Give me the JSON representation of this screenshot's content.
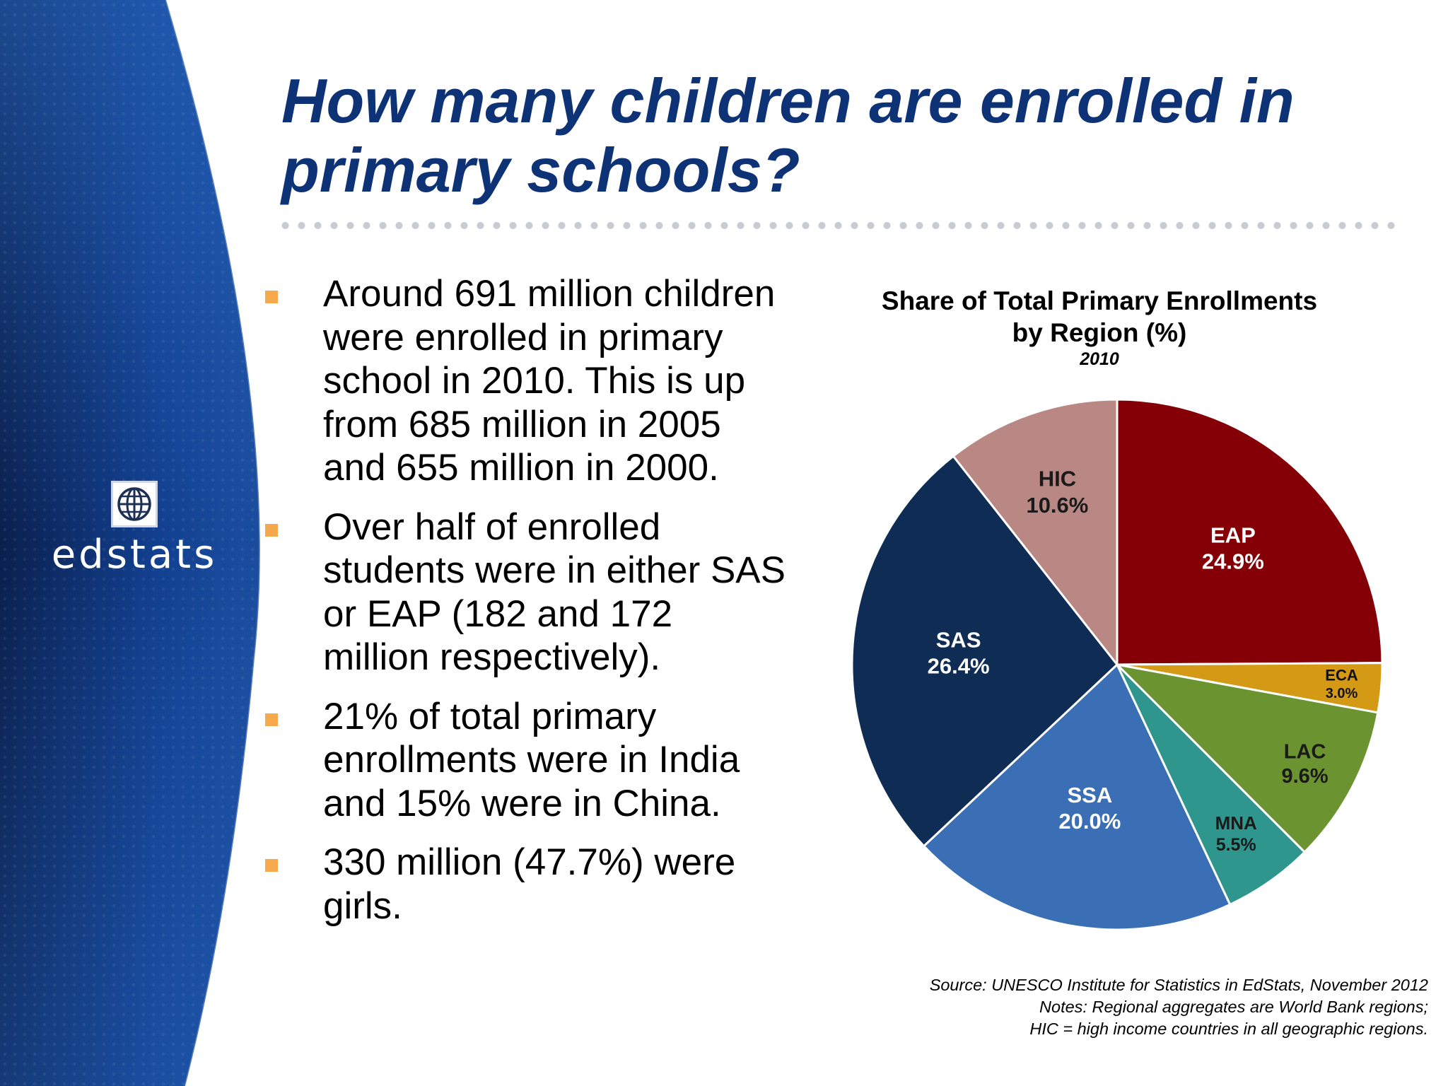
{
  "logo": {
    "text": "edstats"
  },
  "title": "How many children are enrolled in primary schools?",
  "bullets": [
    "Around 691 million children were enrolled in primary school in 2010. This is up from 685 million in 2005 and 655 million in 2000.",
    "Over half of enrolled students were in either SAS or EAP (182 and 172 million respectively).",
    "21% of total primary enrollments were in India and 15% were in China.",
    "330 million (47.7%) were girls."
  ],
  "source_lines": [
    "Source:  UNESCO Institute for Statistics in EdStats, November 2012",
    "Notes: Regional aggregates are World Bank regions;",
    "HIC = high income countries in all geographic regions."
  ],
  "colors": {
    "title": "#0d3275",
    "bullet": "#f5a94c",
    "sidebar_dark": "#0a1f4d",
    "sidebar_mid": "#123f8f"
  },
  "chart_data": {
    "type": "pie",
    "title": "Share of Total Primary Enrollments by Region (%)",
    "subtitle": "2010",
    "unit": "%",
    "slices": [
      {
        "label": "EAP",
        "value": 24.9,
        "display": "24.9%",
        "color": "#840006"
      },
      {
        "label": "ECA",
        "value": 3.0,
        "display": "3.0%",
        "color": "#d49a16"
      },
      {
        "label": "LAC",
        "value": 9.6,
        "display": "9.6%",
        "color": "#6b9430"
      },
      {
        "label": "MNA",
        "value": 5.5,
        "display": "5.5%",
        "color": "#2e968d"
      },
      {
        "label": "SSA",
        "value": 20.0,
        "display": "20.0%",
        "color": "#3b6fb5"
      },
      {
        "label": "SAS",
        "value": 26.4,
        "display": "26.4%",
        "color": "#0e2c54"
      },
      {
        "label": "HIC",
        "value": 10.6,
        "display": "10.6%",
        "color": "#b98784"
      }
    ]
  }
}
